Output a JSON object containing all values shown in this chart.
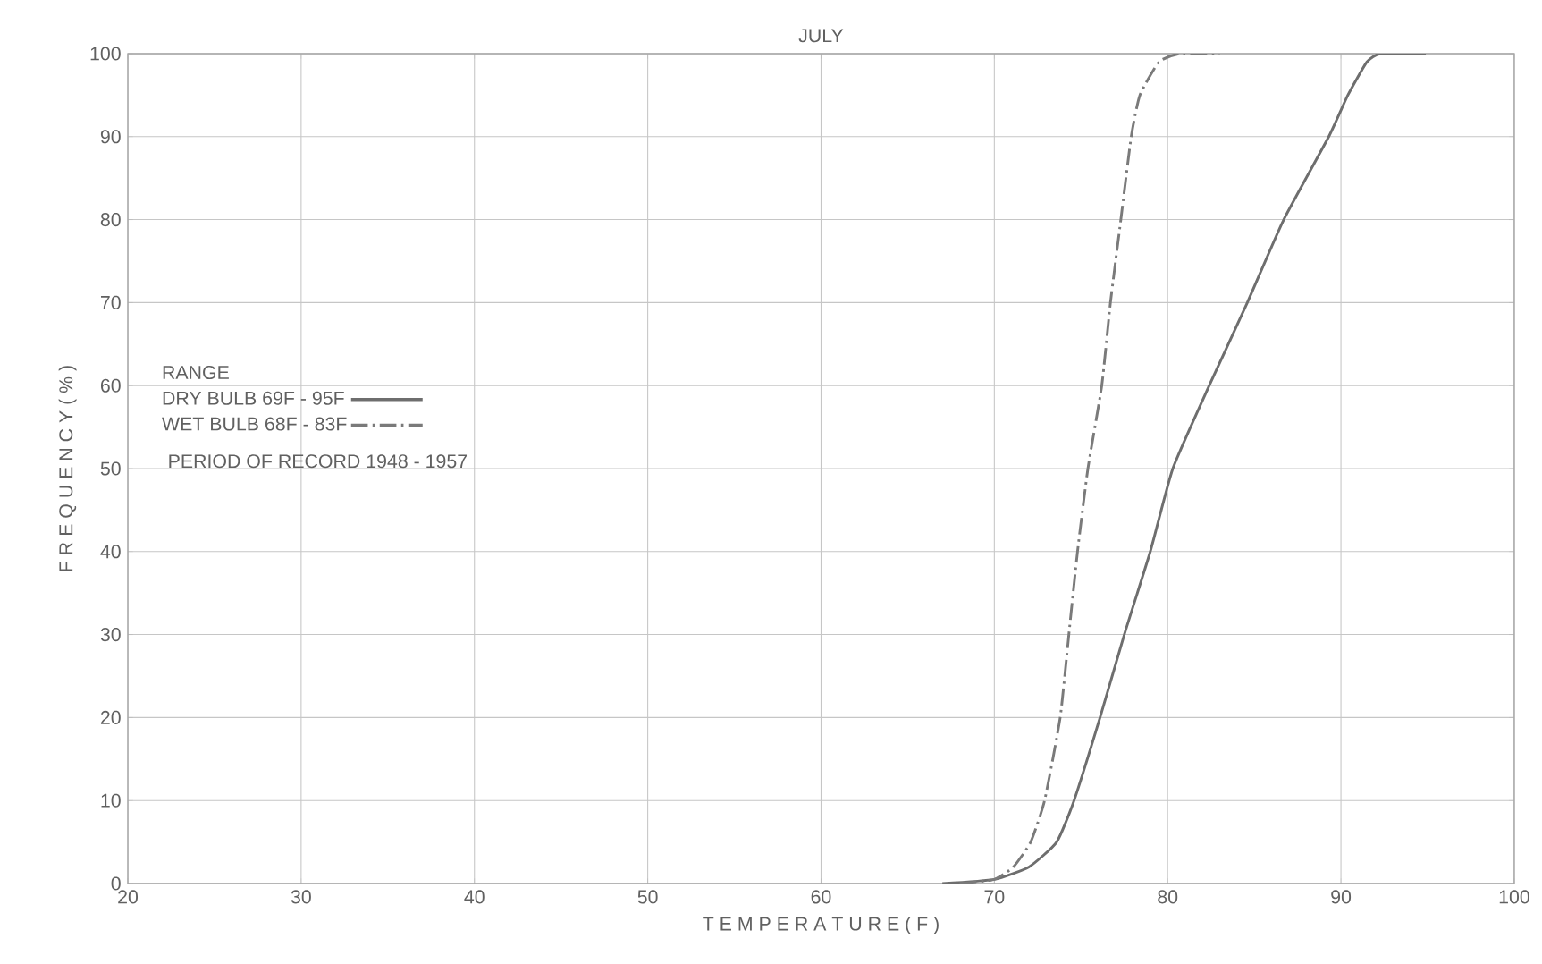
{
  "chart_data": {
    "type": "line",
    "title": "JULY",
    "xlabel": "T E M P E R A T U R E     ( F )",
    "ylabel": "F R E Q U E N C Y     ( % )",
    "legend_title": "RANGE",
    "annotations": [
      "PERIOD OF RECORD  1948 - 1957"
    ],
    "xlim": [
      20,
      100
    ],
    "xticks": [
      20,
      30,
      40,
      50,
      60,
      70,
      80,
      90,
      100
    ],
    "ylim": [
      0,
      100
    ],
    "yticks": [
      0,
      10,
      20,
      30,
      40,
      50,
      60,
      70,
      80,
      90,
      100
    ],
    "grid": true,
    "legend": "left",
    "series": [
      {
        "name": "DRY BULB  69F  -  95F",
        "color": "#6e6e6e",
        "line_style": "solid",
        "x": [
          67,
          70,
          72,
          73.6,
          74.6,
          76.1,
          77.5,
          79.0,
          80.3,
          82.4,
          84.6,
          86.7,
          89.3,
          90.4,
          91.5,
          92.3,
          94.9
        ],
        "values": [
          0,
          0.5,
          2,
          5,
          10,
          20,
          30,
          40,
          50,
          60,
          70,
          80,
          90,
          95,
          99,
          100,
          100
        ]
      },
      {
        "name": "WET BULB  68F  -  83F",
        "color": "#7a7a7a",
        "line_style": "dashdot",
        "x": [
          68,
          70,
          71.1,
          72.1,
          72.9,
          73.8,
          74.3,
          74.8,
          75.4,
          76.2,
          76.7,
          77.3,
          77.9,
          78.4,
          79.5,
          80.7,
          83
        ],
        "values": [
          0,
          0.5,
          2,
          5,
          10,
          20,
          30,
          40,
          50,
          60,
          70,
          80,
          90,
          95,
          99,
          100,
          100
        ]
      }
    ]
  }
}
